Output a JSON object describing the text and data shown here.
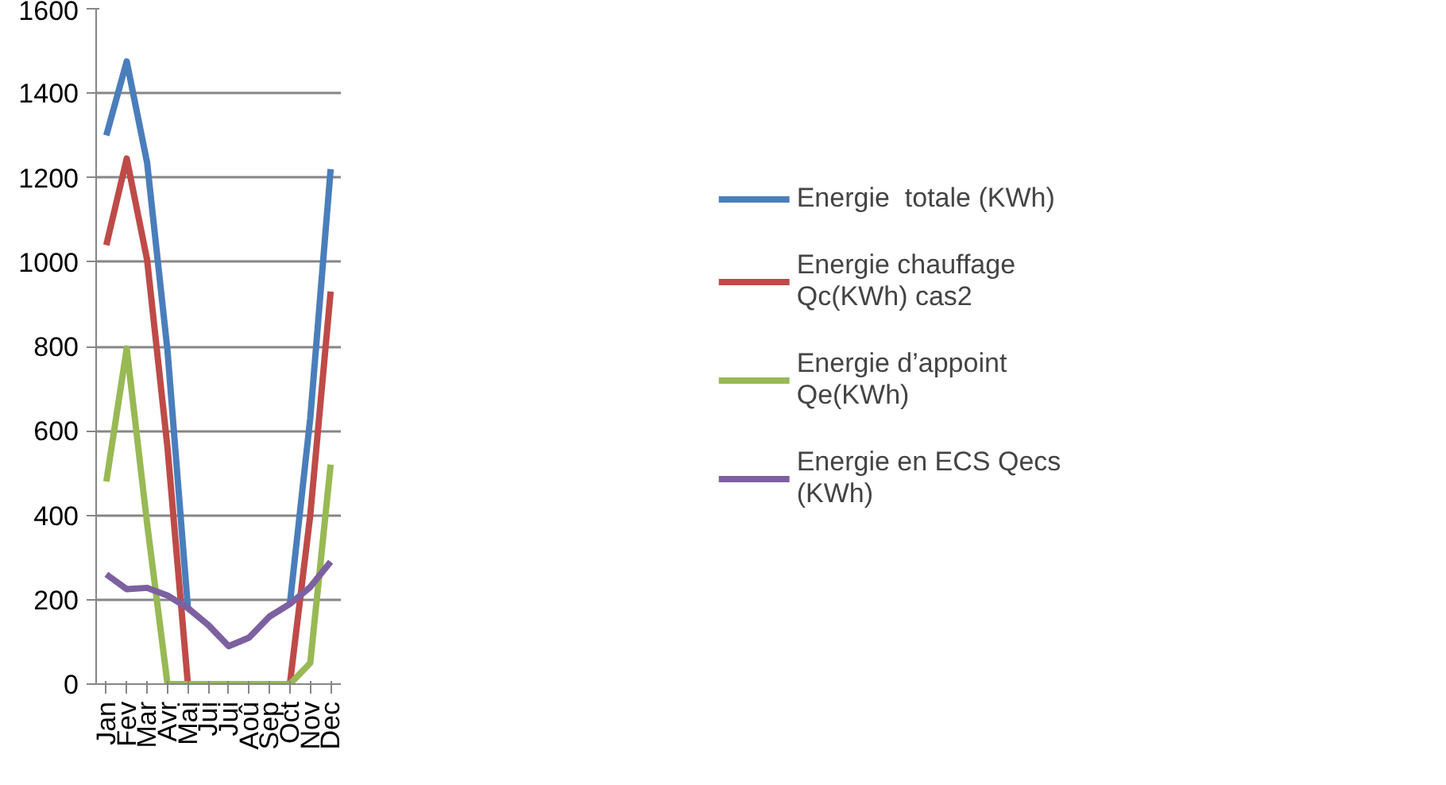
{
  "chart_data": {
    "type": "line",
    "categories": [
      "Jan",
      "Fev",
      "Mar",
      "Avr",
      "Mai",
      "Jui",
      "Jui",
      "Aoû",
      "Sep",
      "Oct",
      "Nov",
      "Dec"
    ],
    "series": [
      {
        "name": "Energie  totale (KWh)",
        "color": "#4a7ebb",
        "values": [
          1300,
          1475,
          1235,
          790,
          180,
          null,
          null,
          null,
          null,
          190,
          630,
          1220
        ]
      },
      {
        "name": "Energie chauffage Qc(KWh) cas2",
        "color": "#be4b48",
        "values": [
          1040,
          1245,
          1005,
          560,
          0,
          null,
          null,
          null,
          null,
          0,
          400,
          930
        ]
      },
      {
        "name": "Energie d’appoint Qe(KWh)",
        "color": "#98b954",
        "values": [
          480,
          795,
          380,
          0,
          0,
          0,
          0,
          0,
          0,
          0,
          50,
          520
        ]
      },
      {
        "name": "Energie en ECS Qecs (KWh)",
        "color": "#7d60a0",
        "values": [
          260,
          225,
          228,
          210,
          180,
          140,
          90,
          110,
          160,
          190,
          230,
          290
        ]
      }
    ],
    "ylim": [
      0,
      1600
    ],
    "yticks": [
      0,
      200,
      400,
      600,
      800,
      1000,
      1200,
      1400,
      1600
    ],
    "grid": "y",
    "legend": "right",
    "marker": "none",
    "line_style": "solid"
  }
}
